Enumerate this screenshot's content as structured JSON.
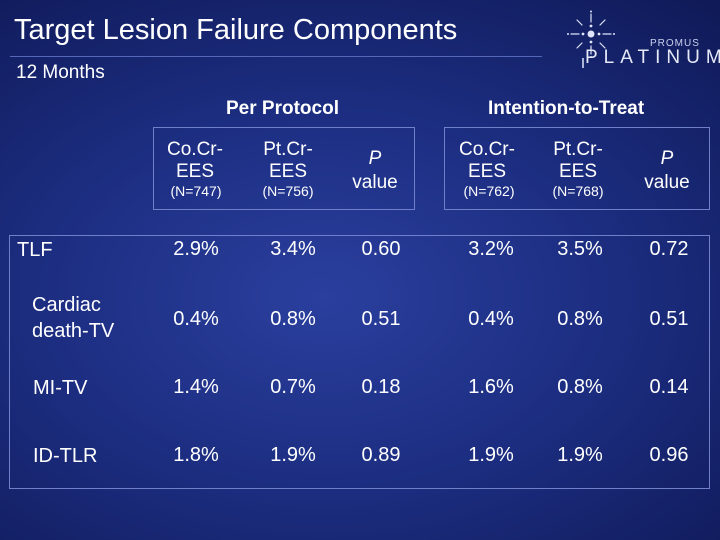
{
  "slide": {
    "title": "Target Lesion Failure Components",
    "subtitle": "12 Months"
  },
  "logo": {
    "top_text": "PROMUS",
    "main_text": "PLATINUM"
  },
  "groups": {
    "per_protocol": "Per Protocol",
    "intention_to_treat": "Intention-to-Treat"
  },
  "columns": [
    {
      "line1": "Co.Cr-",
      "line2": "EES",
      "n": "(N=747)"
    },
    {
      "line1": "Pt.Cr-",
      "line2": "EES",
      "n": "(N=756)"
    },
    {
      "line1": "P",
      "line2": "value",
      "n": ""
    },
    {
      "line1": "Co.Cr-",
      "line2": "EES",
      "n": "(N=762)"
    },
    {
      "line1": "Pt.Cr-",
      "line2": "EES",
      "n": "(N=768)"
    },
    {
      "line1": "P",
      "line2": "value",
      "n": ""
    }
  ],
  "rows": [
    {
      "label": "TLF",
      "values": [
        "2.9%",
        "3.4%",
        "0.60",
        "3.2%",
        "3.5%",
        "0.72"
      ]
    },
    {
      "label_line1": "Cardiac",
      "label_line2": "death-TV",
      "values": [
        "0.4%",
        "0.8%",
        "0.51",
        "0.4%",
        "0.8%",
        "0.51"
      ]
    },
    {
      "label": "MI-TV",
      "values": [
        "1.4%",
        "0.7%",
        "0.18",
        "1.6%",
        "0.8%",
        "0.14"
      ]
    },
    {
      "label": "ID-TLR",
      "values": [
        "1.8%",
        "1.9%",
        "0.89",
        "1.9%",
        "1.9%",
        "0.96"
      ]
    }
  ]
}
